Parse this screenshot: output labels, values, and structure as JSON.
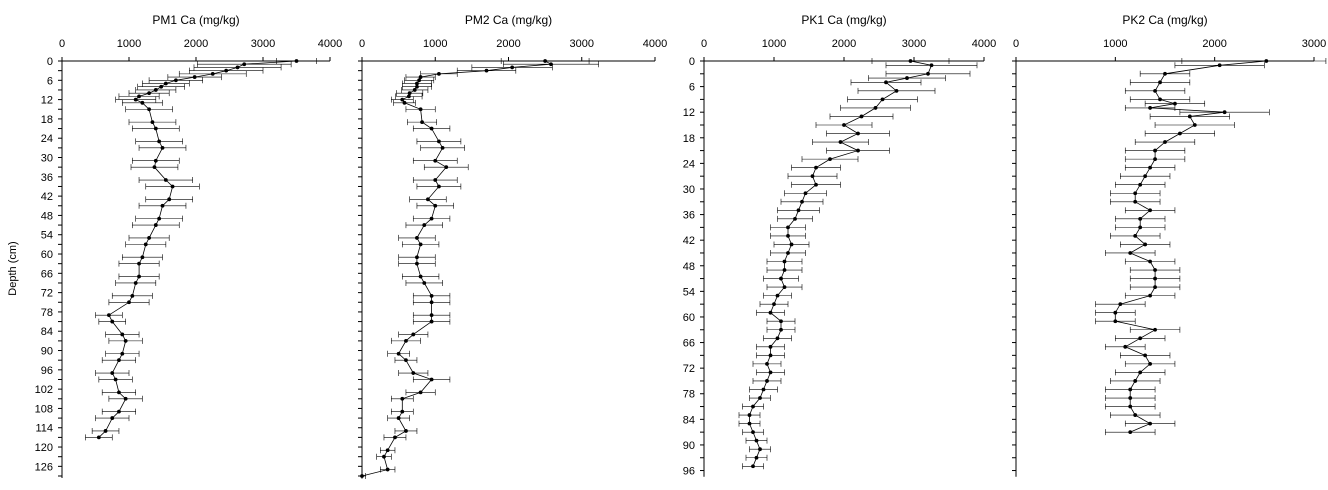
{
  "chart_data": [
    {
      "type": "line",
      "title": "PM1 Ca (mg/kg)",
      "ylabel": "Depth (cm)",
      "xlim": [
        0,
        4000
      ],
      "x_ticks": [
        0,
        1000,
        2000,
        3000,
        4000
      ],
      "ylim": [
        0,
        129
      ],
      "y_ticks": [
        0,
        6,
        12,
        18,
        24,
        30,
        36,
        42,
        48,
        54,
        60,
        66,
        72,
        78,
        84,
        90,
        96,
        102,
        108,
        114,
        120,
        126
      ],
      "y_axis": "inverted",
      "grid": false,
      "depth": [
        0,
        1,
        2,
        3,
        4,
        5,
        6,
        7,
        8,
        9,
        10,
        11,
        12,
        13,
        15,
        19,
        21,
        25,
        27,
        31,
        33,
        37,
        39,
        43,
        45,
        49,
        51,
        55,
        57,
        61,
        63,
        67,
        69,
        73,
        75,
        79,
        81,
        85,
        87,
        91,
        93,
        97,
        99,
        103,
        105,
        109,
        111,
        115,
        117
      ],
      "values": [
        3500,
        2720,
        2620,
        2450,
        2250,
        1980,
        1700,
        1550,
        1480,
        1400,
        1300,
        1150,
        1100,
        1200,
        1300,
        1350,
        1400,
        1450,
        1500,
        1400,
        1380,
        1550,
        1650,
        1600,
        1500,
        1450,
        1400,
        1300,
        1250,
        1200,
        1150,
        1150,
        1100,
        1050,
        1000,
        700,
        750,
        900,
        950,
        900,
        850,
        750,
        800,
        850,
        950,
        850,
        750,
        650,
        550
      ],
      "error": [
        300,
        700,
        650,
        550,
        500,
        400,
        400,
        350,
        350,
        300,
        300,
        300,
        300,
        300,
        350,
        350,
        350,
        350,
        350,
        350,
        350,
        400,
        400,
        350,
        350,
        350,
        350,
        300,
        300,
        300,
        300,
        300,
        300,
        300,
        300,
        200,
        200,
        250,
        250,
        250,
        250,
        250,
        250,
        250,
        250,
        250,
        250,
        200,
        200
      ]
    },
    {
      "type": "line",
      "title": "PM2 Ca (mg/kg)",
      "xlim": [
        0,
        4000
      ],
      "x_ticks": [
        0,
        1000,
        2000,
        3000,
        4000
      ],
      "ylim": [
        0,
        129
      ],
      "y_axis": "inverted",
      "grid": false,
      "depth": [
        0,
        1,
        2,
        3,
        4,
        5,
        6,
        7,
        8,
        9,
        10,
        11,
        12,
        13,
        15,
        19,
        21,
        25,
        27,
        31,
        33,
        37,
        39,
        43,
        45,
        49,
        51,
        55,
        57,
        61,
        63,
        67,
        69,
        73,
        75,
        79,
        81,
        85,
        87,
        91,
        93,
        97,
        99,
        103,
        105,
        109,
        111,
        115,
        117,
        121,
        123,
        127,
        129
      ],
      "values": [
        2500,
        2580,
        2050,
        1700,
        1050,
        800,
        780,
        750,
        750,
        720,
        650,
        640,
        550,
        580,
        800,
        820,
        950,
        1050,
        1100,
        1000,
        1150,
        1000,
        1050,
        900,
        1000,
        950,
        850,
        750,
        800,
        750,
        750,
        800,
        850,
        950,
        950,
        950,
        950,
        700,
        600,
        500,
        600,
        700,
        950,
        800,
        550,
        550,
        500,
        600,
        450,
        350,
        300,
        350,
        0
      ],
      "error": [
        600,
        650,
        550,
        400,
        250,
        200,
        200,
        200,
        200,
        180,
        180,
        180,
        150,
        150,
        200,
        200,
        250,
        300,
        300,
        300,
        300,
        300,
        300,
        250,
        250,
        250,
        250,
        250,
        250,
        250,
        250,
        250,
        250,
        250,
        250,
        250,
        250,
        200,
        200,
        150,
        150,
        200,
        250,
        200,
        150,
        150,
        150,
        150,
        150,
        100,
        100,
        100,
        50
      ]
    },
    {
      "type": "line",
      "title": "PK1 Ca (mg/kg)",
      "xlim": [
        0,
        4000
      ],
      "x_ticks": [
        0,
        1000,
        2000,
        3000,
        4000
      ],
      "ylim": [
        0,
        97
      ],
      "y_ticks": [
        0,
        6,
        12,
        18,
        24,
        30,
        36,
        42,
        48,
        54,
        60,
        66,
        72,
        78,
        84,
        90,
        96
      ],
      "y_axis": "inverted",
      "grid": false,
      "depth": [
        0,
        1,
        3,
        4,
        5,
        7,
        9,
        11,
        13,
        15,
        17,
        19,
        21,
        23,
        25,
        27,
        29,
        31,
        33,
        35,
        37,
        39,
        41,
        43,
        45,
        47,
        49,
        51,
        53,
        55,
        57,
        59,
        61,
        63,
        65,
        67,
        69,
        71,
        73,
        75,
        77,
        79,
        81,
        83,
        85,
        87,
        89,
        91,
        93,
        95
      ],
      "values": [
        2950,
        3250,
        3200,
        2900,
        2600,
        2750,
        2550,
        2450,
        2250,
        2000,
        2200,
        1950,
        2200,
        1800,
        1600,
        1550,
        1600,
        1450,
        1400,
        1350,
        1300,
        1200,
        1200,
        1250,
        1200,
        1150,
        1150,
        1100,
        1150,
        1050,
        1000,
        950,
        1100,
        1100,
        1050,
        950,
        950,
        900,
        950,
        900,
        850,
        800,
        700,
        650,
        650,
        700,
        750,
        800,
        750,
        700
      ],
      "error": [
        550,
        650,
        600,
        550,
        500,
        550,
        500,
        500,
        450,
        400,
        450,
        400,
        450,
        400,
        350,
        350,
        350,
        300,
        300,
        300,
        250,
        250,
        250,
        250,
        250,
        250,
        250,
        250,
        250,
        200,
        200,
        200,
        200,
        200,
        200,
        200,
        200,
        200,
        200,
        200,
        200,
        150,
        150,
        150,
        150,
        150,
        150,
        150,
        150,
        150
      ]
    },
    {
      "type": "line",
      "title": "PK2 Ca (mg/kg)",
      "xlim": [
        0,
        3000
      ],
      "x_ticks": [
        0,
        1000,
        2000,
        3000
      ],
      "ylim": [
        0,
        97
      ],
      "y_axis": "inverted",
      "grid": false,
      "depth": [
        0,
        1,
        3,
        5,
        7,
        9,
        10,
        11,
        12,
        13,
        15,
        17,
        19,
        21,
        23,
        25,
        27,
        29,
        31,
        33,
        35,
        37,
        39,
        41,
        43,
        45,
        47,
        49,
        51,
        53,
        55,
        57,
        59,
        61,
        63,
        65,
        67,
        69,
        71,
        73,
        75,
        77,
        79,
        81,
        83,
        85,
        87
      ],
      "values": [
        2520,
        2050,
        1500,
        1450,
        1400,
        1450,
        1600,
        1350,
        2100,
        1750,
        1800,
        1650,
        1500,
        1400,
        1400,
        1350,
        1300,
        1250,
        1200,
        1200,
        1350,
        1250,
        1250,
        1200,
        1300,
        1150,
        1350,
        1400,
        1400,
        1400,
        1350,
        1050,
        1000,
        1000,
        1400,
        1250,
        1100,
        1300,
        1350,
        1250,
        1200,
        1150,
        1150,
        1150,
        1200,
        1350,
        1150
      ],
      "error": [
        850,
        450,
        250,
        300,
        300,
        300,
        300,
        250,
        450,
        400,
        400,
        350,
        300,
        300,
        300,
        250,
        250,
        250,
        250,
        250,
        250,
        250,
        250,
        250,
        250,
        250,
        250,
        250,
        250,
        250,
        250,
        250,
        200,
        200,
        250,
        250,
        200,
        250,
        250,
        250,
        250,
        250,
        250,
        250,
        250,
        250,
        250
      ]
    }
  ]
}
